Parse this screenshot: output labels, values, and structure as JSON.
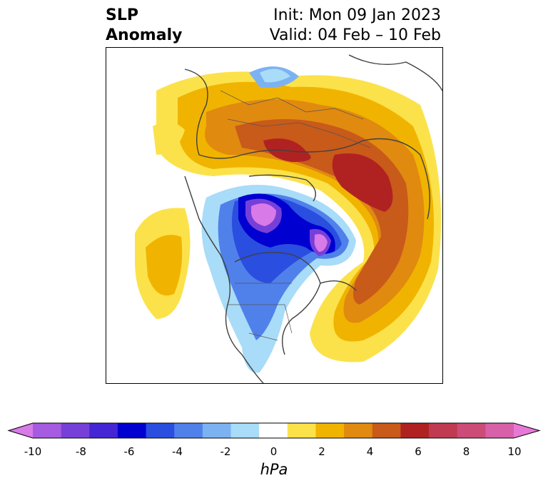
{
  "title": {
    "left_line1": "SLP",
    "left_line2": "Anomaly",
    "right_line1": "Init: Mon 09 Jan 2023",
    "right_line2": "Valid: 04 Feb – 10 Feb"
  },
  "colorbar": {
    "unit": "hPa",
    "ticks": [
      "-10",
      "-8",
      "-6",
      "-4",
      "-2",
      "0",
      "2",
      "4",
      "6",
      "8",
      "10"
    ],
    "colors": [
      "#d87ae8",
      "#a55ce0",
      "#7640d8",
      "#4426d4",
      "#0000d0",
      "#2a4ee0",
      "#5080ea",
      "#7cb2f2",
      "#a8dcf8",
      "#ffffff",
      "#fce24a",
      "#f0b400",
      "#e08a10",
      "#c85a1a",
      "#b02222",
      "#c03a52",
      "#cc4c78",
      "#d860a8",
      "#e878d8"
    ],
    "range": [
      -10,
      10
    ],
    "extend": "both"
  },
  "map": {
    "projection": "polar-stereographic",
    "region": "Northern Hemisphere",
    "field": "SLP anomaly (hPa)"
  }
}
